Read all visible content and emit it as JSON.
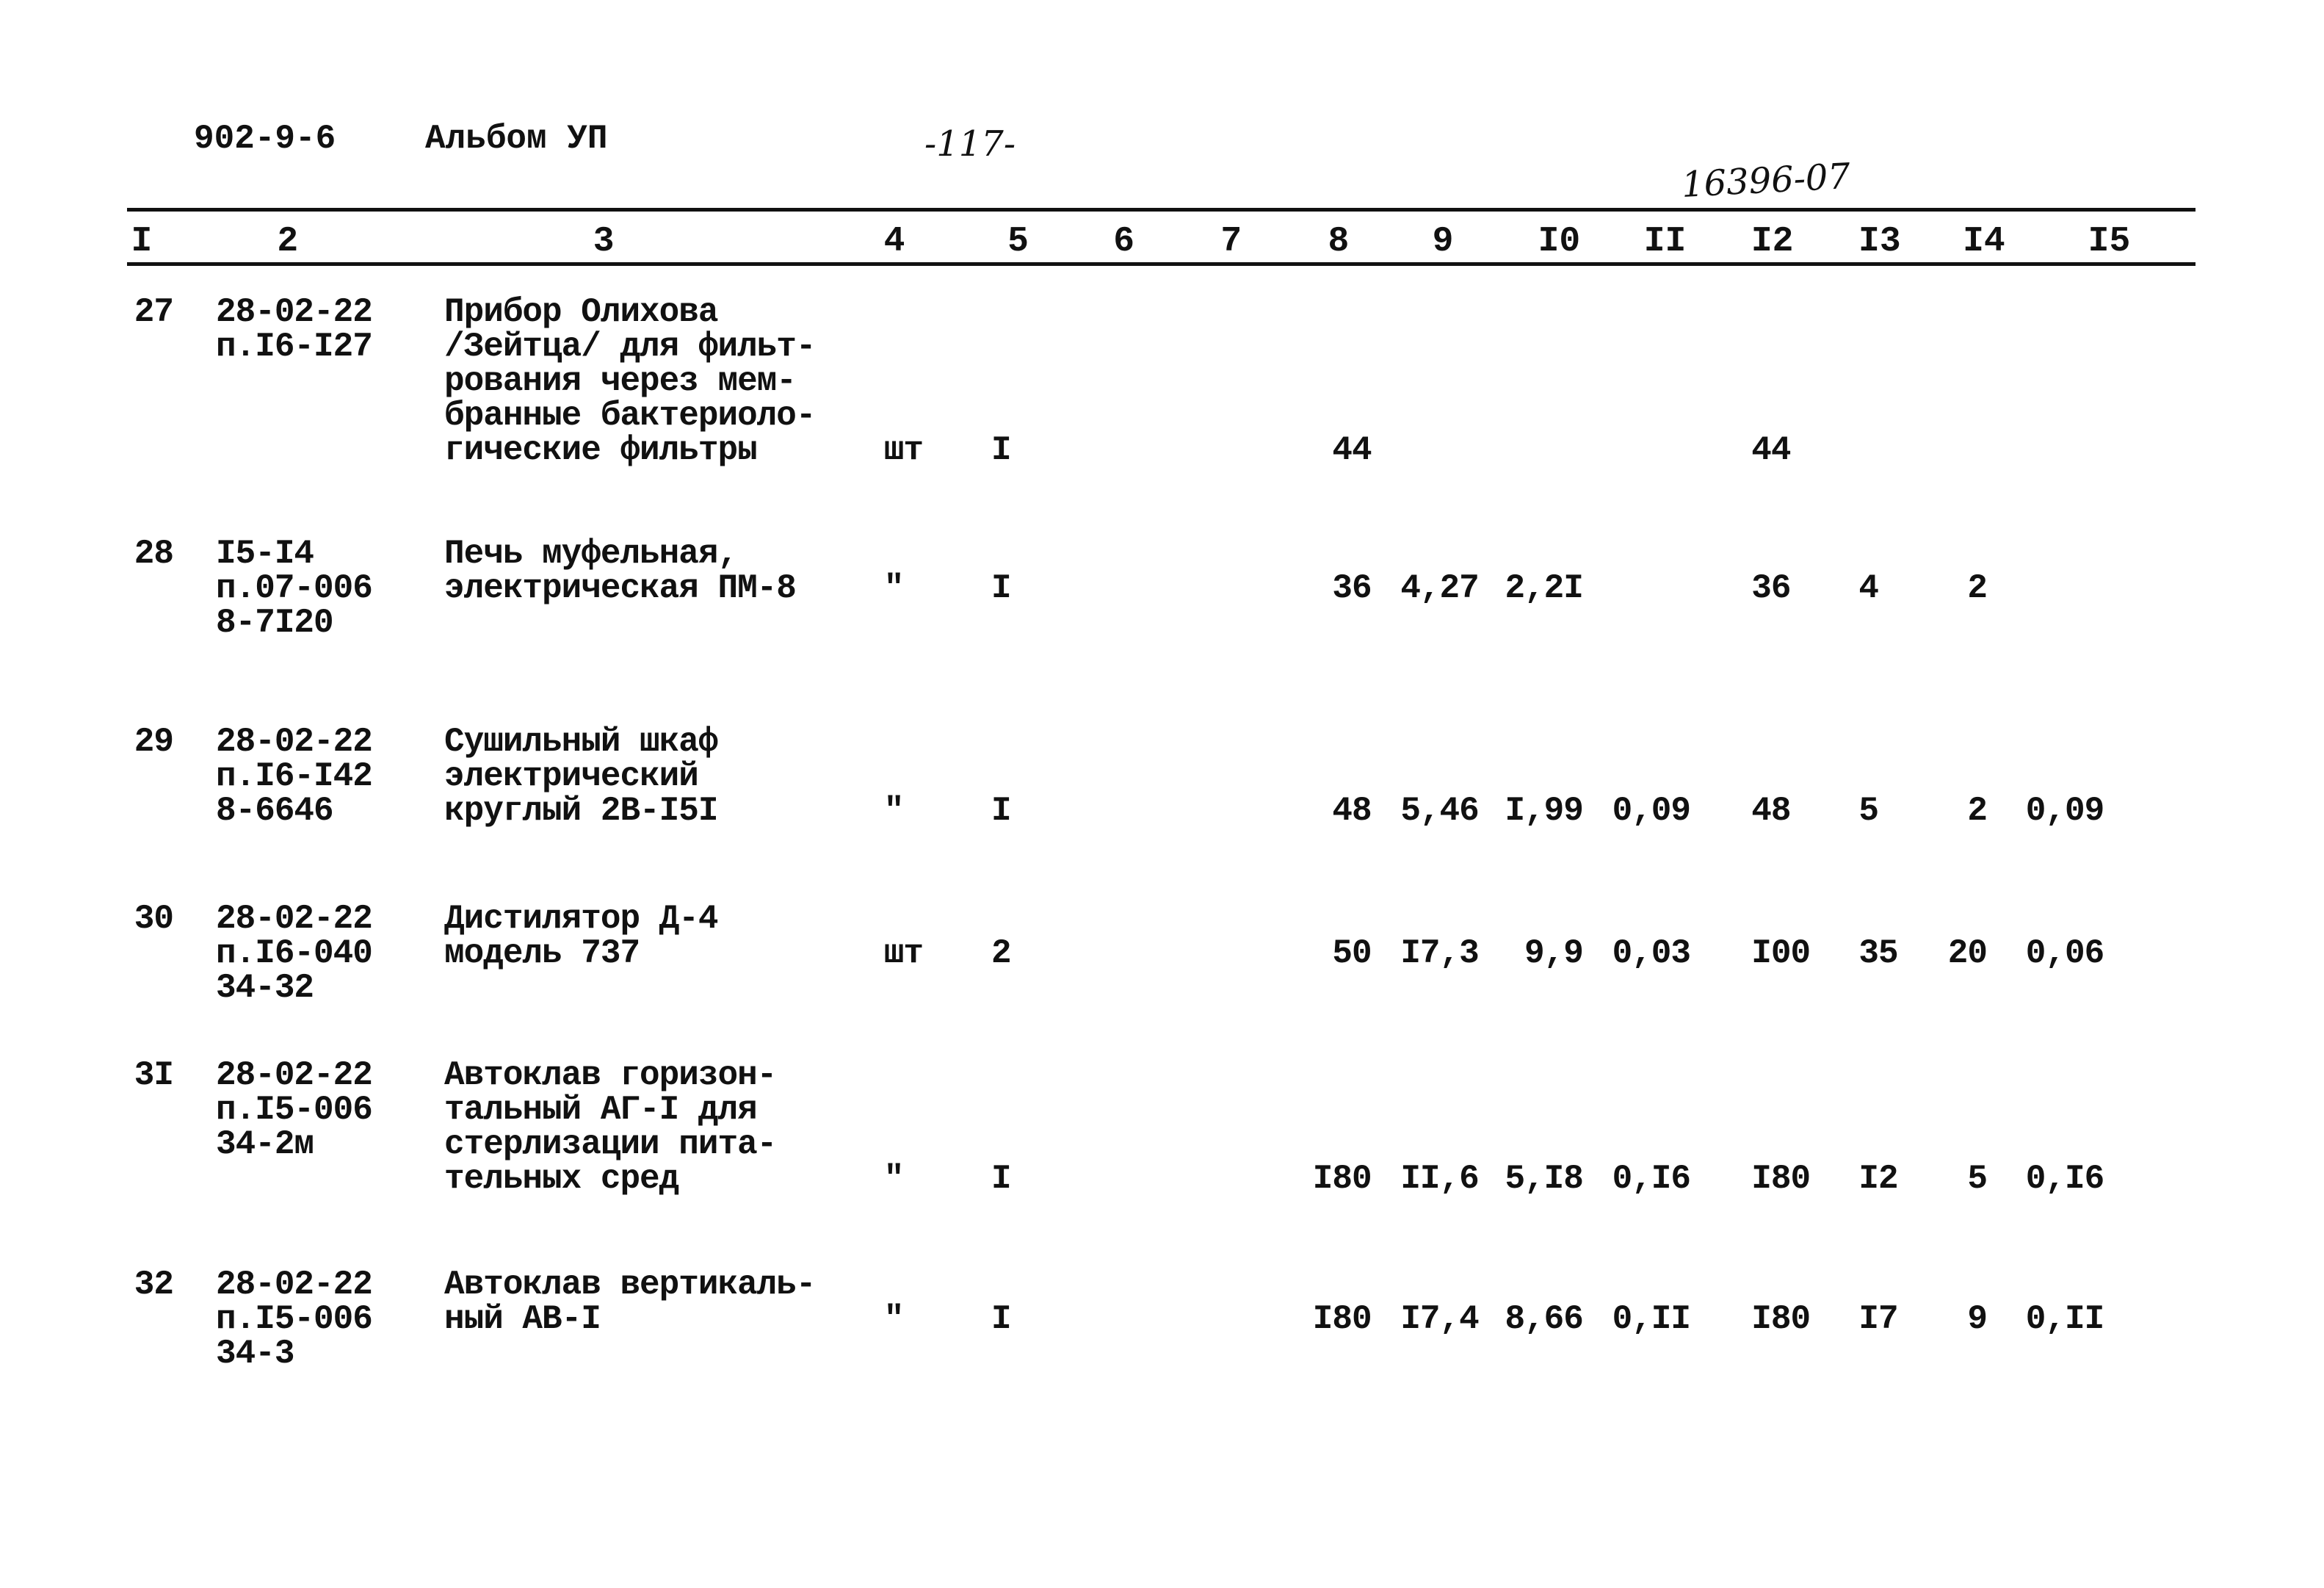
{
  "header": {
    "series_code": "902-9-6",
    "album": "Альбом УП",
    "page_number": "-117-",
    "doc_number": "16396-07"
  },
  "column_headers": [
    "I",
    "2",
    "3",
    "4",
    "5",
    "6",
    "7",
    "8",
    "9",
    "I0",
    "II",
    "I2",
    "I3",
    "I4",
    "I5"
  ],
  "rows": [
    {
      "no": "27",
      "code": [
        "28-02-22",
        "п.I6-I27"
      ],
      "name": [
        "Прибор Олихова",
        "/Зейтца/ для фильт-",
        "рования через мем-",
        "бранные бактериоло-",
        "гические фильтры"
      ],
      "unit": "шт",
      "qty": "I",
      "c8": "44",
      "c9": "",
      "c10": "",
      "c11": "",
      "c12": "44",
      "c13": "",
      "c14": "",
      "c15": ""
    },
    {
      "no": "28",
      "code": [
        "I5-I4",
        "п.07-006",
        "8-7I20"
      ],
      "name": [
        "Печь муфельная,",
        "электрическая ПМ-8"
      ],
      "unit": "\"",
      "qty": "I",
      "c8": "36",
      "c9": "4,27",
      "c10": "2,2I",
      "c11": "",
      "c12": "36",
      "c13": "4",
      "c14": "2",
      "c15": ""
    },
    {
      "no": "29",
      "code": [
        "28-02-22",
        "п.I6-I42",
        "8-6646"
      ],
      "name": [
        "Сушильный шкаф",
        "электрический",
        "круглый 2В-I5I"
      ],
      "unit": "\"",
      "qty": "I",
      "c8": "48",
      "c9": "5,46",
      "c10": "I,99",
      "c11": "0,09",
      "c12": "48",
      "c13": "5",
      "c14": "2",
      "c15": "0,09"
    },
    {
      "no": "30",
      "code": [
        "28-02-22",
        "п.I6-040",
        "34-32"
      ],
      "name": [
        "Дистилятор Д-4",
        "модель 737"
      ],
      "unit": "шт",
      "qty": "2",
      "c8": "50",
      "c9": "I7,3",
      "c10": "9,9",
      "c11": "0,03",
      "c12": "I00",
      "c13": "35",
      "c14": "20",
      "c15": "0,06"
    },
    {
      "no": "3I",
      "code": [
        "28-02-22",
        "п.I5-006",
        "34-2м"
      ],
      "name": [
        "Автоклав горизон-",
        "тальный АГ-I для",
        "стерлизации пита-",
        "тельных сред"
      ],
      "unit": "\"",
      "qty": "I",
      "c8": "I80",
      "c9": "II,6",
      "c10": "5,I8",
      "c11": "0,I6",
      "c12": "I80",
      "c13": "I2",
      "c14": "5",
      "c15": "0,I6"
    },
    {
      "no": "32",
      "code": [
        "28-02-22",
        "п.I5-006",
        "34-3"
      ],
      "name": [
        "Автоклав вертикаль-",
        "ный АВ-I"
      ],
      "unit": "\"",
      "qty": "I",
      "c8": "I80",
      "c9": "I7,4",
      "c10": "8,66",
      "c11": "0,II",
      "c12": "I80",
      "c13": "I7",
      "c14": "9",
      "c15": "0,II"
    }
  ]
}
